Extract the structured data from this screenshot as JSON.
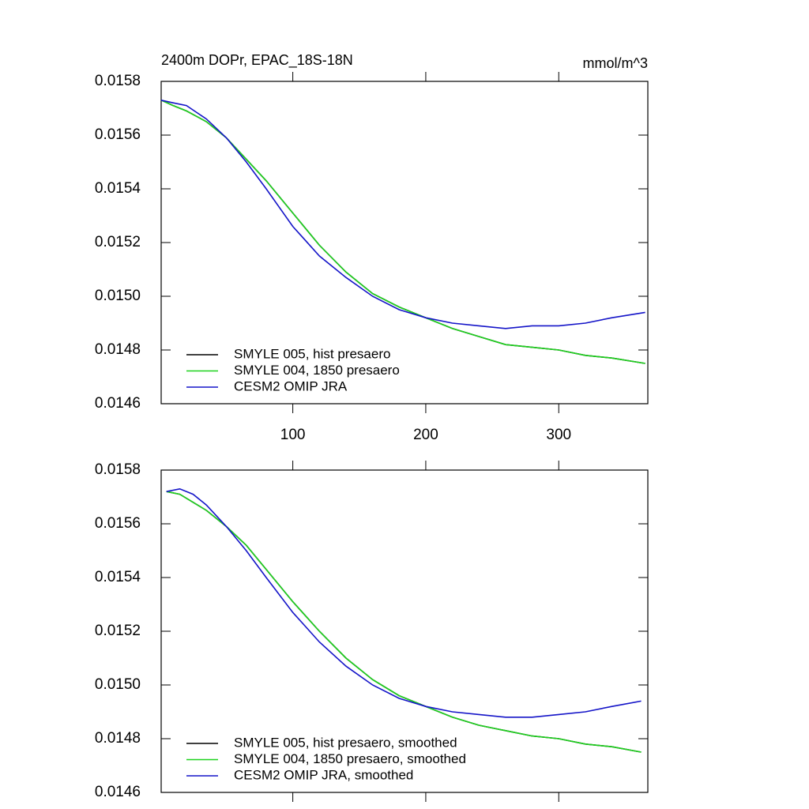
{
  "chart_data": [
    {
      "type": "line",
      "title": "2400m DOPr, EPAC_18S-18N",
      "right_title": "mmol/m^3",
      "x": [
        1,
        10,
        20,
        35,
        50,
        65,
        80,
        100,
        120,
        140,
        160,
        180,
        200,
        220,
        240,
        260,
        280,
        300,
        320,
        340,
        365
      ],
      "series": [
        {
          "name": "SMYLE 005, hist presaero",
          "color": "#000000",
          "values": [
            0.01573,
            0.01571,
            0.01569,
            0.01565,
            0.01559,
            0.01551,
            0.01543,
            0.01531,
            0.01519,
            0.01509,
            0.01501,
            0.01496,
            0.01492,
            0.01488,
            0.01485,
            0.01482,
            0.01481,
            0.0148,
            0.01478,
            0.01477,
            0.01475
          ]
        },
        {
          "name": "SMYLE 004, 1850 presaero",
          "color": "#1ed21e",
          "values": [
            0.01573,
            0.01571,
            0.01569,
            0.01565,
            0.01559,
            0.01551,
            0.01543,
            0.01531,
            0.01519,
            0.01509,
            0.01501,
            0.01496,
            0.01492,
            0.01488,
            0.01485,
            0.01482,
            0.01481,
            0.0148,
            0.01478,
            0.01477,
            0.01475
          ]
        },
        {
          "name": "CESM2 OMIP JRA",
          "color": "#1414c8",
          "values": [
            0.01573,
            0.01572,
            0.01571,
            0.01566,
            0.01559,
            0.0155,
            0.0154,
            0.01526,
            0.01515,
            0.01507,
            0.015,
            0.01495,
            0.01492,
            0.0149,
            0.01489,
            0.01488,
            0.01489,
            0.01489,
            0.0149,
            0.01492,
            0.01494
          ]
        }
      ],
      "xlim": [
        1,
        367
      ],
      "xticks": [
        100,
        200,
        300
      ],
      "x_tick_labels": true,
      "ylim": [
        0.0146,
        0.0158
      ],
      "yticks": [
        0.0146,
        0.0148,
        {
          "value": 0.015,
          "label": "0.0150"
        },
        0.0152,
        0.0154,
        0.0156,
        0.0158
      ]
    },
    {
      "type": "line",
      "x": [
        5,
        15,
        25,
        35,
        50,
        65,
        80,
        100,
        120,
        140,
        160,
        180,
        200,
        220,
        240,
        260,
        280,
        300,
        320,
        340,
        362
      ],
      "series": [
        {
          "name": "SMYLE 005, hist presaero, smoothed",
          "color": "#000000",
          "values": [
            0.01572,
            0.01571,
            0.01568,
            0.01565,
            0.01559,
            0.01552,
            0.01543,
            0.01531,
            0.0152,
            0.0151,
            0.01502,
            0.01496,
            0.01492,
            0.01488,
            0.01485,
            0.01483,
            0.01481,
            0.0148,
            0.01478,
            0.01477,
            0.01475
          ]
        },
        {
          "name": "SMYLE 004, 1850 presaero, smoothed",
          "color": "#1ed21e",
          "values": [
            0.01572,
            0.01571,
            0.01568,
            0.01565,
            0.01559,
            0.01552,
            0.01543,
            0.01531,
            0.0152,
            0.0151,
            0.01502,
            0.01496,
            0.01492,
            0.01488,
            0.01485,
            0.01483,
            0.01481,
            0.0148,
            0.01478,
            0.01477,
            0.01475
          ]
        },
        {
          "name": "CESM2 OMIP JRA, smoothed",
          "color": "#1414c8",
          "values": [
            0.01572,
            0.01573,
            0.01571,
            0.01567,
            0.01559,
            0.0155,
            0.0154,
            0.01527,
            0.01516,
            0.01507,
            0.015,
            0.01495,
            0.01492,
            0.0149,
            0.01489,
            0.01488,
            0.01488,
            0.01489,
            0.0149,
            0.01492,
            0.01494
          ]
        }
      ],
      "xlim": [
        1,
        367
      ],
      "xticks": [
        100,
        200,
        300
      ],
      "x_tick_labels": false,
      "ylim": [
        0.0146,
        0.0158
      ],
      "yticks": [
        0.0146,
        0.0148,
        {
          "value": 0.015,
          "label": "0.0150"
        },
        0.0152,
        0.0154,
        0.0156,
        0.0158
      ]
    }
  ]
}
